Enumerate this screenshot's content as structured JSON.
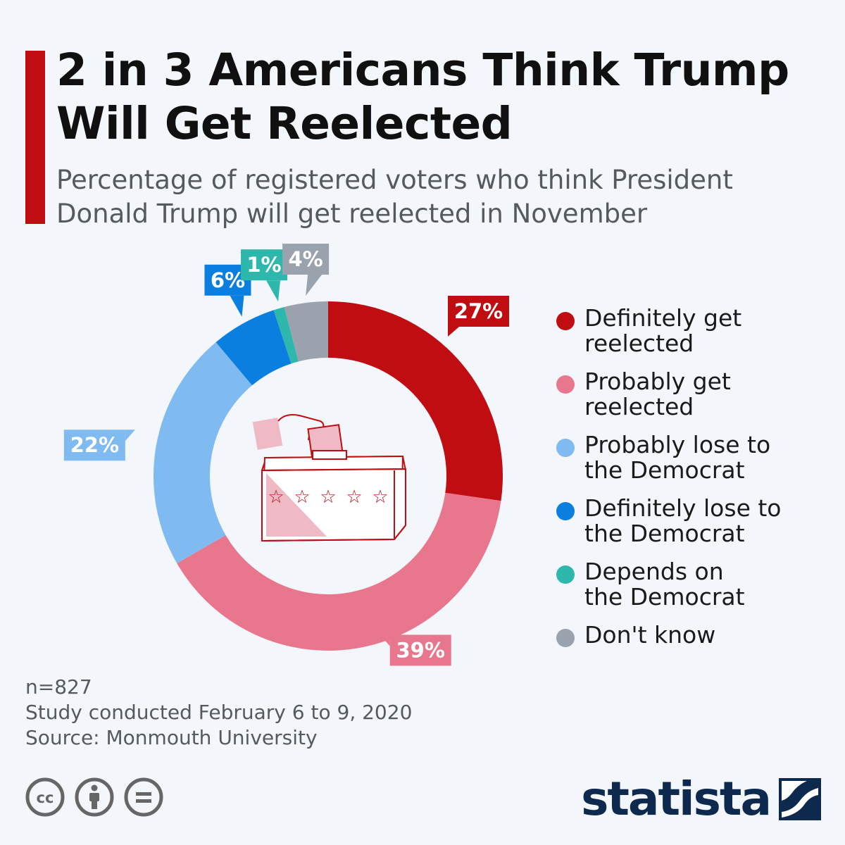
{
  "header": {
    "title": "2 in 3 Americans Think Trump Will Get Reelected",
    "subtitle": "Percentage of registered voters who think President Donald Trump will get reelected in November"
  },
  "colors": {
    "accent": "#c00d12",
    "definitely_get": "#c00d12",
    "probably_get": "#e8778e",
    "probably_lose": "#7fbaf0",
    "definitely_lose": "#0a7fe0",
    "depends": "#2eb8ad",
    "dont_know": "#9aa3ad"
  },
  "chart_data": {
    "type": "pie",
    "donut": true,
    "title": "2 in 3 Americans Think Trump Will Get Reelected",
    "subtitle": "Percentage of registered voters who think President Donald Trump will get reelected in November",
    "legend_position": "right",
    "slices": [
      {
        "name": "Definitely get reelected",
        "value": 27,
        "label": "27%",
        "color": "#c00d12"
      },
      {
        "name": "Probably get reelected",
        "value": 39,
        "label": "39%",
        "color": "#e8778e"
      },
      {
        "name": "Probably lose to the Democrat",
        "value": 22,
        "label": "22%",
        "color": "#7fbaf0"
      },
      {
        "name": "Definitely lose to the Democrat",
        "value": 6,
        "label": "6%",
        "color": "#0a7fe0"
      },
      {
        "name": "Depends on the Democrat",
        "value": 1,
        "label": "1%",
        "color": "#2eb8ad"
      },
      {
        "name": "Don't know",
        "value": 4,
        "label": "4%",
        "color": "#9aa3ad"
      }
    ]
  },
  "legend": {
    "items": [
      {
        "label": "Definitely get\nreelected",
        "color": "#c00d12"
      },
      {
        "label": "Probably get\nreelected",
        "color": "#e8778e"
      },
      {
        "label": "Probably lose to\nthe Democrat",
        "color": "#7fbaf0"
      },
      {
        "label": "Definitely lose to\nthe Democrat",
        "color": "#0a7fe0"
      },
      {
        "label": "Depends on\nthe Democrat",
        "color": "#2eb8ad"
      },
      {
        "label": "Don't know",
        "color": "#9aa3ad"
      }
    ]
  },
  "notes": {
    "sample": "n=827",
    "study": "Study conducted February 6 to 9, 2020",
    "source": "Source: Monmouth University"
  },
  "footer": {
    "brand": "statista",
    "license_icons": [
      "cc-icon",
      "attribution-icon",
      "no-derivatives-icon"
    ]
  }
}
